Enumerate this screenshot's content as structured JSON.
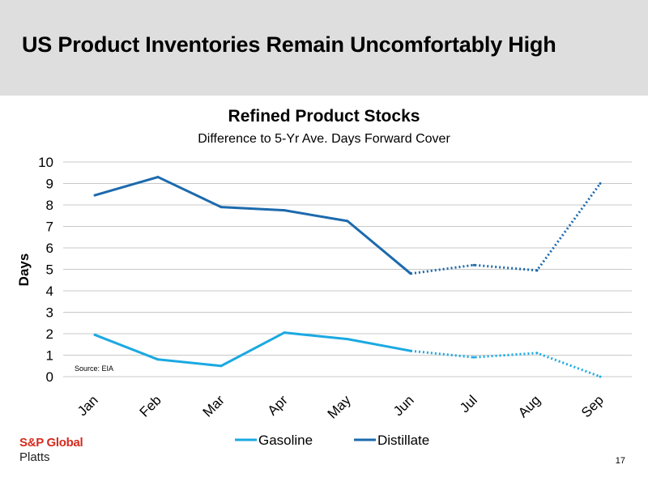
{
  "slide": {
    "title": "US Product Inventories Remain Uncomfortably High",
    "page_number": "17"
  },
  "brand": {
    "line1": "S&P Global",
    "line2": "Platts",
    "colors": {
      "brand_red": "#d52b1e",
      "header_band": "#dedede"
    }
  },
  "chart_data": {
    "type": "line",
    "title": "Refined Product Stocks",
    "subtitle": "Difference to 5-Yr Ave. Days Forward Cover",
    "xlabel": "",
    "ylabel": "Days",
    "categories": [
      "Jan",
      "Feb",
      "Mar",
      "Apr",
      "May",
      "Jun",
      "Jul",
      "Aug",
      "Sep"
    ],
    "ylim": [
      0,
      10
    ],
    "yticks": [
      0,
      1,
      2,
      3,
      4,
      5,
      6,
      7,
      8,
      9,
      10
    ],
    "grid": true,
    "legend_position": "bottom",
    "annotation": "Source: EIA",
    "dotted_from_category": "Jun",
    "series": [
      {
        "name": "Gasoline",
        "color": "#1ba9e1",
        "values": [
          1.95,
          0.8,
          0.5,
          2.05,
          1.75,
          1.2,
          0.9,
          1.1,
          0.0
        ]
      },
      {
        "name": "Distillate",
        "color": "#1c6aad",
        "values": [
          8.45,
          9.3,
          7.9,
          7.75,
          7.25,
          4.8,
          5.2,
          4.95,
          9.0
        ]
      }
    ]
  }
}
